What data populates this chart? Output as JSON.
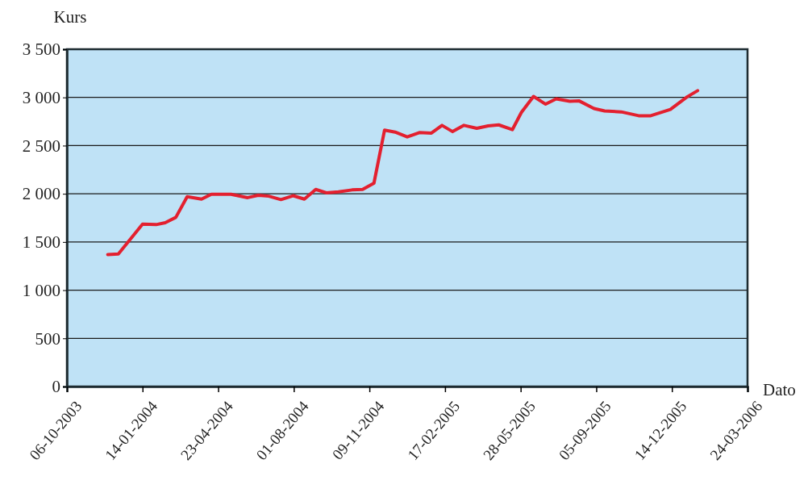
{
  "chart_data": {
    "type": "line",
    "xlabel": "Dato",
    "ylabel": "Kurs",
    "x": [
      "2003-11-29",
      "2003-12-13",
      "2004-01-14",
      "2004-02-01",
      "2004-02-13",
      "2004-02-27",
      "2004-03-13",
      "2004-04-01",
      "2004-04-14",
      "2004-05-10",
      "2004-06-01",
      "2004-06-15",
      "2004-06-29",
      "2004-07-15",
      "2004-07-31",
      "2004-08-15",
      "2004-08-30",
      "2004-09-13",
      "2004-09-29",
      "2004-10-17",
      "2004-10-31",
      "2004-11-15",
      "2004-11-29",
      "2004-12-13",
      "2004-12-29",
      "2005-01-14",
      "2005-01-30",
      "2005-02-13",
      "2005-02-27",
      "2005-03-14",
      "2005-03-31",
      "2005-04-15",
      "2005-04-29",
      "2005-05-17",
      "2005-05-29",
      "2005-06-14",
      "2005-06-30",
      "2005-07-14",
      "2005-08-01",
      "2005-08-13",
      "2005-09-02",
      "2005-09-16",
      "2005-10-08",
      "2005-10-31",
      "2005-11-16",
      "2005-12-12",
      "2006-01-03",
      "2006-01-17"
    ],
    "series": [
      {
        "color": "#e3202f",
        "values": [
          1370,
          1375,
          1685,
          1680,
          1700,
          1755,
          1970,
          1945,
          1995,
          1995,
          1960,
          1985,
          1975,
          1940,
          1980,
          1945,
          2045,
          2010,
          2020,
          2040,
          2045,
          2110,
          2660,
          2640,
          2590,
          2635,
          2630,
          2710,
          2645,
          2710,
          2680,
          2705,
          2715,
          2665,
          2845,
          3010,
          2930,
          2985,
          2960,
          2965,
          2885,
          2860,
          2850,
          2810,
          2810,
          2875,
          3005,
          3070
        ]
      }
    ],
    "xlim": [
      "2003-10-06",
      "2006-03-24"
    ],
    "xticks": [
      {
        "value": "2003-10-06",
        "label": "06-10-2003"
      },
      {
        "value": "2004-01-14",
        "label": "14-01-2004"
      },
      {
        "value": "2004-04-23",
        "label": "23-04-2004"
      },
      {
        "value": "2004-08-01",
        "label": "01-08-2004"
      },
      {
        "value": "2004-11-09",
        "label": "09-11-2004"
      },
      {
        "value": "2005-02-17",
        "label": "17-02-2005"
      },
      {
        "value": "2005-05-28",
        "label": "28-05-2005"
      },
      {
        "value": "2005-09-05",
        "label": "05-09-2005"
      },
      {
        "value": "2005-12-14",
        "label": "14-12-2005"
      },
      {
        "value": "2006-03-24",
        "label": "24-03-2006"
      }
    ],
    "ylim": [
      0,
      3500
    ],
    "yticks": [
      0,
      {
        "value": 500,
        "label": "500"
      },
      {
        "value": 1000,
        "label": "1 000"
      },
      {
        "value": 1500,
        "label": "1 500"
      },
      {
        "value": 2000,
        "label": "2 000"
      },
      {
        "value": 2500,
        "label": "2 500"
      },
      {
        "value": 3000,
        "label": "3 000"
      },
      {
        "value": 3500,
        "label": "3 500"
      }
    ],
    "grid": "y",
    "line_style": "solid",
    "marker": "none"
  }
}
